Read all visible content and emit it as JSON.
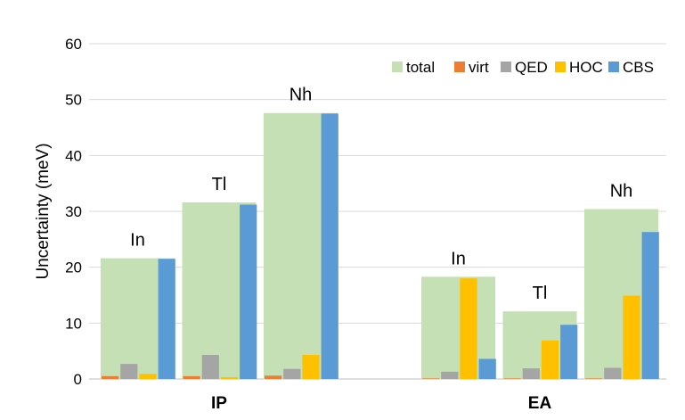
{
  "chart_data": {
    "type": "bar",
    "title": "",
    "ylabel": "Uncertainty (meV)",
    "ylim": [
      0,
      60
    ],
    "yticks": [
      0,
      10,
      20,
      30,
      40,
      50,
      60
    ],
    "grid": true,
    "legend_position": "top-right",
    "series": [
      {
        "name": "total",
        "color": "#c5e0b4"
      },
      {
        "name": "virt",
        "color": "#ed7d31"
      },
      {
        "name": "QED",
        "color": "#a5a5a5"
      },
      {
        "name": "HOC",
        "color": "#ffc000"
      },
      {
        "name": "CBS",
        "color": "#5b9bd5"
      }
    ],
    "groups": [
      {
        "label": "IP",
        "elements": [
          {
            "label": "In",
            "total": 21.6,
            "virt": 0.5,
            "QED": 2.7,
            "HOC": 0.9,
            "CBS": 21.5
          },
          {
            "label": "Tl",
            "total": 31.6,
            "virt": 0.5,
            "QED": 4.3,
            "HOC": 0.3,
            "CBS": 31.2
          },
          {
            "label": "Nh",
            "total": 47.6,
            "virt": 0.6,
            "QED": 1.8,
            "HOC": 4.3,
            "CBS": 47.5
          }
        ]
      },
      {
        "label": "EA",
        "elements": [
          {
            "label": "In",
            "total": 18.3,
            "virt": 0.1,
            "QED": 1.3,
            "HOC": 18.0,
            "CBS": 3.6
          },
          {
            "label": "Tl",
            "total": 12.1,
            "virt": 0.1,
            "QED": 1.9,
            "HOC": 6.9,
            "CBS": 9.7
          },
          {
            "label": "Nh",
            "total": 30.4,
            "virt": 0.1,
            "QED": 2.0,
            "HOC": 14.9,
            "CBS": 26.3
          }
        ]
      }
    ]
  }
}
